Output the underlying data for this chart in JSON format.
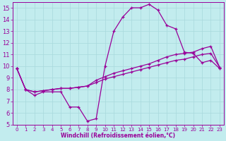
{
  "xlabel": "Windchill (Refroidissement éolien,°C)",
  "background_color": "#c2ecee",
  "line_color": "#990099",
  "grid_color": "#a8d8dc",
  "xlim": [
    -0.5,
    23.5
  ],
  "ylim": [
    5,
    15.5
  ],
  "yticks": [
    5,
    6,
    7,
    8,
    9,
    10,
    11,
    12,
    13,
    14,
    15
  ],
  "xticks": [
    0,
    1,
    2,
    3,
    4,
    5,
    6,
    7,
    8,
    9,
    10,
    11,
    12,
    13,
    14,
    15,
    16,
    17,
    18,
    19,
    20,
    21,
    22,
    23
  ],
  "curve1_x": [
    0,
    1,
    2,
    3,
    4,
    5,
    6,
    7,
    8,
    9,
    10,
    11,
    12,
    13,
    14,
    15,
    16,
    17,
    18,
    19,
    20,
    21,
    22,
    23
  ],
  "curve1_y": [
    9.8,
    8.0,
    7.5,
    7.8,
    7.8,
    7.8,
    6.5,
    6.5,
    5.3,
    5.5,
    10.0,
    13.0,
    14.2,
    15.0,
    15.0,
    15.3,
    14.8,
    13.5,
    13.2,
    11.2,
    11.1,
    10.3,
    10.5,
    9.8
  ],
  "curve2_x": [
    0,
    1,
    2,
    3,
    4,
    5,
    6,
    7,
    8,
    9,
    10,
    11,
    12,
    13,
    14,
    15,
    16,
    17,
    18,
    19,
    20,
    21,
    22,
    23
  ],
  "curve2_y": [
    9.8,
    8.0,
    7.8,
    7.9,
    8.0,
    8.1,
    8.1,
    8.2,
    8.3,
    8.8,
    9.1,
    9.4,
    9.6,
    9.8,
    10.0,
    10.2,
    10.5,
    10.8,
    11.0,
    11.1,
    11.2,
    11.5,
    11.7,
    9.9
  ],
  "curve3_x": [
    0,
    1,
    2,
    3,
    4,
    5,
    6,
    7,
    8,
    9,
    10,
    11,
    12,
    13,
    14,
    15,
    16,
    17,
    18,
    19,
    20,
    21,
    22,
    23
  ],
  "curve3_y": [
    9.8,
    8.0,
    7.8,
    7.9,
    8.0,
    8.1,
    8.1,
    8.2,
    8.3,
    8.6,
    8.9,
    9.1,
    9.3,
    9.5,
    9.7,
    9.9,
    10.1,
    10.3,
    10.5,
    10.6,
    10.8,
    11.0,
    11.1,
    9.9
  ],
  "xlabel_fontsize": 5.5,
  "tick_fontsize_x": 5.0,
  "tick_fontsize_y": 6.0,
  "linewidth": 0.9,
  "markersize": 3.5
}
